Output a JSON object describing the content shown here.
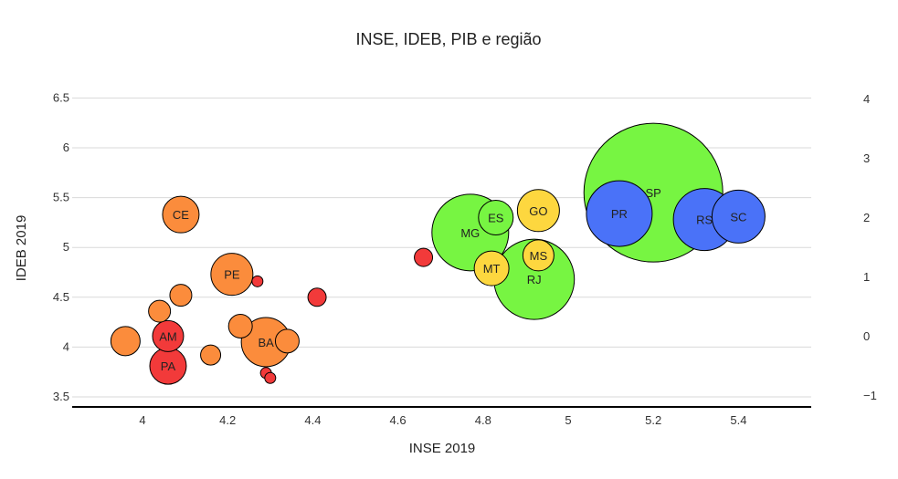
{
  "chart_data": {
    "type": "scatter",
    "title": "INSE, IDEB, PIB e região",
    "xlabel": "INSE 2019",
    "ylabel": "IDEB 2019",
    "xlim": [
      3.75,
      5.57
    ],
    "ylim": [
      3.4,
      6.75
    ],
    "y2lim": [
      -1.16,
      4.07
    ],
    "xticks": [
      "4",
      "4.2",
      "4.4",
      "4.6",
      "4.8",
      "5",
      "5.2",
      "5.4"
    ],
    "yticks": [
      "3.5",
      "4",
      "4.5",
      "5",
      "5.5",
      "6",
      "6.5"
    ],
    "y2ticks": [
      "−1",
      "0",
      "1",
      "2",
      "3",
      "4"
    ],
    "grid": true,
    "colors": {
      "red": "#f23a3a",
      "orange": "#fb8c3c",
      "green": "#77f542",
      "yellow": "#fdd73f",
      "blue": "#4a72f8"
    },
    "points": [
      {
        "label": "SP",
        "x": 5.2,
        "y": 5.55,
        "size": 76,
        "color": "green"
      },
      {
        "label": "MG",
        "x": 4.77,
        "y": 5.15,
        "size": 42,
        "color": "green"
      },
      {
        "label": "RJ",
        "x": 4.92,
        "y": 4.68,
        "size": 44,
        "color": "green"
      },
      {
        "label": "ES",
        "x": 4.83,
        "y": 5.3,
        "size": 19,
        "color": "green"
      },
      {
        "label": "GO",
        "x": 4.93,
        "y": 5.37,
        "size": 23,
        "color": "yellow"
      },
      {
        "label": "MS",
        "x": 4.93,
        "y": 4.92,
        "size": 17,
        "color": "yellow"
      },
      {
        "label": "MT",
        "x": 4.82,
        "y": 4.79,
        "size": 19,
        "color": "yellow"
      },
      {
        "label": "PR",
        "x": 5.12,
        "y": 5.34,
        "size": 36,
        "color": "blue"
      },
      {
        "label": "RS",
        "x": 5.32,
        "y": 5.28,
        "size": 34,
        "color": "blue"
      },
      {
        "label": "SC",
        "x": 5.4,
        "y": 5.31,
        "size": 29,
        "color": "blue"
      },
      {
        "label": "CE",
        "x": 4.09,
        "y": 5.33,
        "size": 20,
        "color": "orange"
      },
      {
        "label": "PE",
        "x": 4.21,
        "y": 4.73,
        "size": 23,
        "color": "orange"
      },
      {
        "label": "BA",
        "x": 4.29,
        "y": 4.05,
        "size": 27,
        "color": "orange"
      },
      {
        "label": "",
        "x": 3.96,
        "y": 4.06,
        "size": 16,
        "color": "orange"
      },
      {
        "label": "",
        "x": 4.04,
        "y": 4.36,
        "size": 12,
        "color": "orange"
      },
      {
        "label": "",
        "x": 4.09,
        "y": 4.52,
        "size": 12,
        "color": "orange"
      },
      {
        "label": "",
        "x": 4.16,
        "y": 3.92,
        "size": 11,
        "color": "orange"
      },
      {
        "label": "",
        "x": 4.23,
        "y": 4.21,
        "size": 13,
        "color": "orange"
      },
      {
        "label": "",
        "x": 4.34,
        "y": 4.06,
        "size": 13,
        "color": "orange"
      },
      {
        "label": "AM",
        "x": 4.06,
        "y": 4.11,
        "size": 17,
        "color": "red"
      },
      {
        "label": "PA",
        "x": 4.06,
        "y": 3.81,
        "size": 20,
        "color": "red"
      },
      {
        "label": "",
        "x": 4.41,
        "y": 4.5,
        "size": 10,
        "color": "red"
      },
      {
        "label": "",
        "x": 4.66,
        "y": 4.9,
        "size": 10,
        "color": "red"
      },
      {
        "label": "",
        "x": 4.27,
        "y": 4.66,
        "size": 6,
        "color": "red"
      },
      {
        "label": "",
        "x": 4.29,
        "y": 3.74,
        "size": 6,
        "color": "red"
      },
      {
        "label": "",
        "x": 4.3,
        "y": 3.69,
        "size": 6,
        "color": "red"
      }
    ]
  }
}
